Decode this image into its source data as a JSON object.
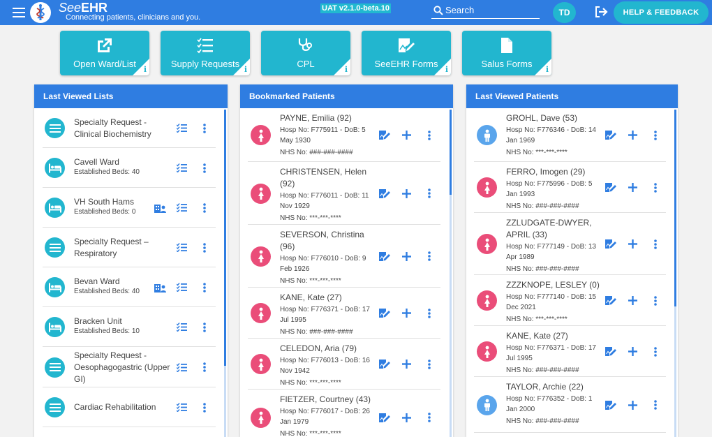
{
  "header": {
    "brand_prefix": "See",
    "brand_bold": "EHR",
    "tagline": "Connecting patients, clinicians and you.",
    "environment": "UAT v2.1.0-beta.10",
    "search_placeholder": "Search",
    "user_initials": "TD",
    "help_label": "HELP & FEEDBACK"
  },
  "tiles": [
    {
      "label": "Open Ward/List",
      "icon": "open-external-icon"
    },
    {
      "label": "Supply Requests",
      "icon": "checklist-icon"
    },
    {
      "label": "CPL",
      "icon": "stethoscope-icon"
    },
    {
      "label": "SeeEHR Forms",
      "icon": "form-edit-icon"
    },
    {
      "label": "Salus Forms",
      "icon": "document-icon"
    }
  ],
  "last_viewed_lists": {
    "title": "Last Viewed Lists",
    "items": [
      {
        "title_line1": "Specialty Request -",
        "title_line2": "Clinical Biochemistry",
        "sub": "",
        "type": "list"
      },
      {
        "title_line1": "Cavell Ward",
        "title_line2": "",
        "sub": "Established Beds: 40",
        "type": "ward"
      },
      {
        "title_line1": "VH South Hams",
        "title_line2": "",
        "sub": "Established Beds: 0",
        "type": "ward",
        "team": true
      },
      {
        "title_line1": "Specialty Request –",
        "title_line2": "Respiratory",
        "sub": "",
        "type": "list"
      },
      {
        "title_line1": "Bevan Ward",
        "title_line2": "",
        "sub": "Established Beds: 40",
        "type": "ward",
        "team": true
      },
      {
        "title_line1": "Bracken Unit",
        "title_line2": "",
        "sub": "Established Beds: 10",
        "type": "ward"
      },
      {
        "title_line1": "Specialty Request -",
        "title_line2": "Oesophagogastric (Upper",
        "title_line3": "GI)",
        "sub": "",
        "type": "list"
      },
      {
        "title_line1": "Cardiac Rehabilitation",
        "title_line2": "",
        "sub": "",
        "type": "list"
      }
    ]
  },
  "bookmarked_patients": {
    "title": "Bookmarked Patients",
    "items": [
      {
        "name_line1": "PAYNE, Emilia (92)",
        "name_line2": "",
        "hosp_line1": "Hosp No: F775911 - DoB: 5",
        "hosp_line2": "May 1930",
        "nhs": "NHS No: ###-###-####",
        "sex": "female"
      },
      {
        "name_line1": "CHRISTENSEN, Helen",
        "name_line2": "(92)",
        "hosp_line1": "Hosp No: F776011 - DoB: 11",
        "hosp_line2": "Nov 1929",
        "nhs": "NHS No: ***-***-****",
        "sex": "female"
      },
      {
        "name_line1": "SEVERSON, Christina",
        "name_line2": "(96)",
        "hosp_line1": "Hosp No: F776010 - DoB: 9",
        "hosp_line2": "Feb 1926",
        "nhs": "NHS No: ***-***-****",
        "sex": "female"
      },
      {
        "name_line1": "KANE, Kate (27)",
        "name_line2": "",
        "hosp_line1": "Hosp No: F776371 - DoB: 17",
        "hosp_line2": "Jul 1995",
        "nhs": "NHS No: ###-###-####",
        "sex": "female"
      },
      {
        "name_line1": "CELEDON, Aria (79)",
        "name_line2": "",
        "hosp_line1": "Hosp No: F776013 - DoB: 16",
        "hosp_line2": "Nov 1942",
        "nhs": "NHS No: ***-***-****",
        "sex": "female"
      },
      {
        "name_line1": "FIETZER, Courtney (43)",
        "name_line2": "",
        "hosp_line1": "Hosp No: F776017 - DoB: 26",
        "hosp_line2": "Jan 1979",
        "nhs": "NHS No: ***-***-****",
        "sex": "female"
      }
    ]
  },
  "last_viewed_patients": {
    "title": "Last Viewed Patients",
    "items": [
      {
        "name_line1": "GROHL, Dave (53)",
        "name_line2": "",
        "hosp_line1": "Hosp No: F776346 - DoB: 14",
        "hosp_line2": "Jan 1969",
        "nhs": "NHS No: ***-***-****",
        "sex": "male"
      },
      {
        "name_line1": "FERRO, Imogen (29)",
        "name_line2": "",
        "hosp_line1": "Hosp No: F775996 - DoB: 5",
        "hosp_line2": "Jan 1993",
        "nhs": "NHS No: ###-###-####",
        "sex": "female"
      },
      {
        "name_line1": "ZZLUDGATE-DWYER,",
        "name_line2": "APRIL (33)",
        "hosp_line1": "Hosp No: F777149 - DoB: 13",
        "hosp_line2": "Apr 1989",
        "nhs": "NHS No: ###-###-####",
        "sex": "female"
      },
      {
        "name_line1": "ZZZKNOPE, LESLEY (0)",
        "name_line2": "",
        "hosp_line1": "Hosp No: F777140 - DoB: 15",
        "hosp_line2": "Dec 2021",
        "nhs": "NHS No: ***-***-****",
        "sex": "female"
      },
      {
        "name_line1": "KANE, Kate (27)",
        "name_line2": "",
        "hosp_line1": "Hosp No: F776371 - DoB: 17",
        "hosp_line2": "Jul 1995",
        "nhs": "NHS No: ###-###-####",
        "sex": "female"
      },
      {
        "name_line1": "TAYLOR, Archie (22)",
        "name_line2": "",
        "hosp_line1": "Hosp No: F776352 - DoB: 1",
        "hosp_line2": "Jan 2000",
        "nhs": "NHS No: ###-###-####",
        "sex": "male"
      }
    ]
  },
  "colors": {
    "header_blue": "#2f7de1",
    "teal": "#22b6cf",
    "female_pink": "#ea4d79",
    "male_blue": "#5aa5ec"
  }
}
